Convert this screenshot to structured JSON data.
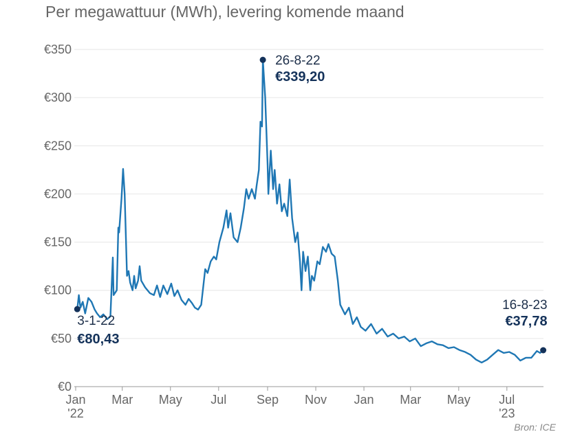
{
  "title": "Per megawattuur (MWh), levering komende maand",
  "source": "Bron: ICE",
  "colors": {
    "line": "#1f77b4",
    "marker": "#14325a",
    "grid": "#e6e6e6"
  },
  "chart_data": {
    "type": "line",
    "title": "Per megawattuur (MWh), levering komende maand",
    "ylim": [
      0,
      350
    ],
    "yticks": [
      0,
      50,
      100,
      150,
      200,
      250,
      300,
      350
    ],
    "ytick_labels": [
      "€0",
      "€50",
      "€100",
      "€150",
      "€200",
      "€250",
      "€300",
      "€350"
    ],
    "xticks": [
      {
        "date": "2022-01-01",
        "label": "Jan",
        "sub": "'22"
      },
      {
        "date": "2022-03-01",
        "label": "Mar"
      },
      {
        "date": "2022-05-01",
        "label": "May"
      },
      {
        "date": "2022-07-01",
        "label": "Jul"
      },
      {
        "date": "2022-09-01",
        "label": "Sep"
      },
      {
        "date": "2022-11-01",
        "label": "Nov"
      },
      {
        "date": "2023-01-01",
        "label": "Jan"
      },
      {
        "date": "2023-03-01",
        "label": "Mar"
      },
      {
        "date": "2023-05-01",
        "label": "May"
      },
      {
        "date": "2023-07-01",
        "label": "Jul",
        "sub": "'23"
      }
    ],
    "grid": true,
    "annotations": [
      {
        "date": "2022-01-03",
        "label": "3-1-22",
        "value_label": "€80,43",
        "value": 80.43
      },
      {
        "date": "2022-08-26",
        "label": "26-8-22",
        "value_label": "€339,20",
        "value": 339.2
      },
      {
        "date": "2023-08-16",
        "label": "16-8-23",
        "value_label": "€37,78",
        "value": 37.78
      }
    ],
    "series": [
      {
        "x": [
          "2022-01-03",
          "2022-01-05",
          "2022-01-07",
          "2022-01-10",
          "2022-01-13",
          "2022-01-17",
          "2022-01-21",
          "2022-01-25",
          "2022-01-28",
          "2022-02-01",
          "2022-02-05",
          "2022-02-10",
          "2022-02-14",
          "2022-02-17",
          "2022-02-18",
          "2022-02-22",
          "2022-02-24",
          "2022-02-25",
          "2022-02-28",
          "2022-03-02",
          "2022-03-04",
          "2022-03-07",
          "2022-03-09",
          "2022-03-11",
          "2022-03-14",
          "2022-03-16",
          "2022-03-18",
          "2022-03-21",
          "2022-03-23",
          "2022-03-25",
          "2022-03-30",
          "2022-04-05",
          "2022-04-10",
          "2022-04-14",
          "2022-04-18",
          "2022-04-22",
          "2022-04-27",
          "2022-05-02",
          "2022-05-06",
          "2022-05-10",
          "2022-05-15",
          "2022-05-20",
          "2022-05-24",
          "2022-05-28",
          "2022-06-01",
          "2022-06-05",
          "2022-06-09",
          "2022-06-14",
          "2022-06-17",
          "2022-06-21",
          "2022-06-25",
          "2022-06-28",
          "2022-07-02",
          "2022-07-07",
          "2022-07-11",
          "2022-07-13",
          "2022-07-16",
          "2022-07-20",
          "2022-07-25",
          "2022-07-29",
          "2022-08-02",
          "2022-08-05",
          "2022-08-08",
          "2022-08-12",
          "2022-08-16",
          "2022-08-18",
          "2022-08-21",
          "2022-08-23",
          "2022-08-25",
          "2022-08-26",
          "2022-08-29",
          "2022-09-01",
          "2022-09-02",
          "2022-09-05",
          "2022-09-08",
          "2022-09-10",
          "2022-09-13",
          "2022-09-16",
          "2022-09-19",
          "2022-09-22",
          "2022-09-26",
          "2022-09-29",
          "2022-10-02",
          "2022-10-06",
          "2022-10-09",
          "2022-10-12",
          "2022-10-14",
          "2022-10-16",
          "2022-10-19",
          "2022-10-22",
          "2022-10-25",
          "2022-10-27",
          "2022-10-30",
          "2022-11-03",
          "2022-11-06",
          "2022-11-10",
          "2022-11-14",
          "2022-11-17",
          "2022-11-21",
          "2022-11-25",
          "2022-11-29",
          "2022-12-02",
          "2022-12-08",
          "2022-12-13",
          "2022-12-18",
          "2022-12-23",
          "2022-12-28",
          "2023-01-03",
          "2023-01-10",
          "2023-01-17",
          "2023-01-24",
          "2023-01-31",
          "2023-02-07",
          "2023-02-14",
          "2023-02-21",
          "2023-02-28",
          "2023-03-07",
          "2023-03-14",
          "2023-03-21",
          "2023-03-28",
          "2023-04-04",
          "2023-04-11",
          "2023-04-18",
          "2023-04-25",
          "2023-05-02",
          "2023-05-09",
          "2023-05-16",
          "2023-05-23",
          "2023-05-30",
          "2023-06-06",
          "2023-06-13",
          "2023-06-20",
          "2023-06-27",
          "2023-07-04",
          "2023-07-11",
          "2023-07-18",
          "2023-07-25",
          "2023-08-01",
          "2023-08-08",
          "2023-08-12",
          "2023-08-16"
        ],
        "values": [
          80.43,
          95,
          82,
          88,
          76,
          92,
          88,
          80,
          76,
          72,
          75,
          70,
          73,
          134,
          95,
          100,
          165,
          160,
          195,
          226,
          200,
          115,
          120,
          108,
          100,
          115,
          102,
          110,
          125,
          110,
          103,
          97,
          95,
          105,
          93,
          105,
          96,
          107,
          94,
          100,
          90,
          85,
          91,
          87,
          82,
          80,
          85,
          122,
          118,
          130,
          135,
          132,
          150,
          165,
          183,
          165,
          180,
          155,
          150,
          165,
          185,
          205,
          195,
          205,
          195,
          208,
          225,
          275,
          270,
          339.2,
          300,
          230,
          200,
          245,
          205,
          225,
          190,
          210,
          182,
          190,
          177,
          215,
          175,
          150,
          160,
          130,
          100,
          140,
          120,
          135,
          100,
          115,
          110,
          130,
          127,
          145,
          140,
          148,
          138,
          135,
          110,
          85,
          75,
          82,
          65,
          72,
          62,
          58,
          65,
          55,
          60,
          52,
          55,
          50,
          52,
          47,
          50,
          42,
          45,
          47,
          44,
          43,
          40,
          41,
          38,
          36,
          33,
          28,
          25,
          28,
          33,
          38,
          35,
          36,
          33,
          27,
          30,
          30,
          37,
          35,
          37.78
        ]
      }
    ]
  }
}
